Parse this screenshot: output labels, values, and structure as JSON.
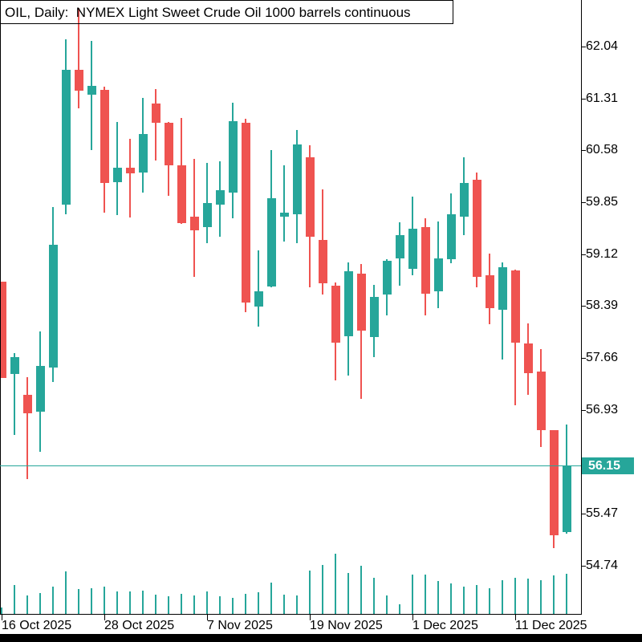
{
  "title": "OIL, Daily:  NYMEX Light Sweet Crude Oil 1000 barrels continuous",
  "colors": {
    "bull": "#26a69a",
    "bear": "#ef5350",
    "volume": "#26a69a",
    "price_line": "#26a69a",
    "price_box_bg": "#26a69a",
    "price_box_text": "#ffffff",
    "axis": "#000000",
    "text": "#000000",
    "background": "#ffffff",
    "bottom_bar": "#000000"
  },
  "chart_data": {
    "type": "candlestick",
    "title": "OIL, Daily:  NYMEX Light Sweet Crude Oil 1000 barrels continuous",
    "symbol": "OIL",
    "timeframe": "Daily",
    "current_price": 56.15,
    "current_price_label": "56.15",
    "y_ticks": [
      "62.04",
      "61.31",
      "60.58",
      "59.85",
      "59.12",
      "58.39",
      "57.66",
      "56.93",
      "55.47",
      "54.74"
    ],
    "ylim": [
      54.2,
      62.7
    ],
    "x_axis_labels": [
      {
        "text": "16 Oct 2025",
        "bar": 0
      },
      {
        "text": "28 Oct 2025",
        "bar": 8
      },
      {
        "text": "7 Nov 2025",
        "bar": 16
      },
      {
        "text": "19 Nov 2025",
        "bar": 24
      },
      {
        "text": "1 Dec 2025",
        "bar": 32
      },
      {
        "text": "11 Dec 2025",
        "bar": 40
      }
    ],
    "legend": "none",
    "grid": false,
    "candles_format": [
      "open",
      "high",
      "low",
      "close",
      "volume"
    ],
    "candles": [
      [
        58.73,
        58.73,
        57.38,
        57.38,
        8
      ],
      [
        57.44,
        57.73,
        56.58,
        57.67,
        36
      ],
      [
        57.14,
        57.39,
        55.96,
        56.88,
        23
      ],
      [
        56.9,
        58.03,
        56.34,
        57.55,
        26
      ],
      [
        57.53,
        59.78,
        57.32,
        59.25,
        34
      ],
      [
        59.82,
        62.14,
        59.68,
        61.71,
        53
      ],
      [
        61.71,
        62.58,
        61.17,
        61.42,
        31
      ],
      [
        61.36,
        62.12,
        60.58,
        61.49,
        32
      ],
      [
        61.43,
        61.48,
        59.7,
        60.12,
        34
      ],
      [
        60.13,
        60.98,
        59.67,
        60.34,
        28
      ],
      [
        60.34,
        60.74,
        59.64,
        60.26,
        28
      ],
      [
        60.27,
        61.32,
        59.99,
        60.81,
        29
      ],
      [
        61.24,
        61.44,
        60.44,
        60.97,
        24
      ],
      [
        60.97,
        60.98,
        59.94,
        60.37,
        22
      ],
      [
        60.37,
        61.04,
        59.55,
        59.56,
        25
      ],
      [
        59.65,
        60.46,
        58.8,
        59.46,
        23
      ],
      [
        59.5,
        60.4,
        59.27,
        59.84,
        28
      ],
      [
        59.82,
        60.43,
        59.36,
        60.02,
        22
      ],
      [
        59.99,
        61.25,
        59.62,
        60.99,
        20
      ],
      [
        60.97,
        61.02,
        58.3,
        58.44,
        25
      ],
      [
        58.38,
        59.17,
        58.1,
        58.6,
        27
      ],
      [
        58.67,
        60.58,
        58.65,
        59.91,
        39
      ],
      [
        59.65,
        60.37,
        59.3,
        59.7,
        24
      ],
      [
        59.68,
        60.87,
        59.27,
        60.66,
        23
      ],
      [
        60.48,
        60.65,
        58.65,
        59.36,
        54
      ],
      [
        59.32,
        60.03,
        58.55,
        58.71,
        61
      ],
      [
        58.68,
        58.72,
        57.34,
        57.87,
        75
      ],
      [
        57.97,
        59.0,
        57.41,
        58.88,
        51
      ],
      [
        58.85,
        58.98,
        57.08,
        58.04,
        60
      ],
      [
        57.95,
        58.69,
        57.67,
        58.52,
        45
      ],
      [
        58.55,
        59.05,
        58.26,
        59.03,
        23
      ],
      [
        59.06,
        59.57,
        58.68,
        59.39,
        12
      ],
      [
        58.91,
        59.93,
        58.82,
        59.48,
        49
      ],
      [
        59.5,
        59.62,
        58.26,
        58.56,
        49
      ],
      [
        58.6,
        59.58,
        58.36,
        59.06,
        41
      ],
      [
        59.05,
        59.97,
        58.99,
        59.68,
        38
      ],
      [
        59.65,
        60.48,
        59.39,
        60.12,
        34
      ],
      [
        60.17,
        60.27,
        58.65,
        58.8,
        36
      ],
      [
        58.82,
        59.13,
        58.13,
        58.36,
        32
      ],
      [
        58.34,
        59.0,
        57.64,
        58.94,
        42
      ],
      [
        58.89,
        58.9,
        56.99,
        57.87,
        45
      ],
      [
        57.86,
        58.15,
        57.14,
        57.45,
        44
      ],
      [
        57.47,
        57.78,
        56.41,
        56.64,
        42
      ],
      [
        56.65,
        56.65,
        54.99,
        55.17,
        48
      ],
      [
        55.21,
        56.73,
        55.19,
        56.15,
        50
      ]
    ]
  }
}
